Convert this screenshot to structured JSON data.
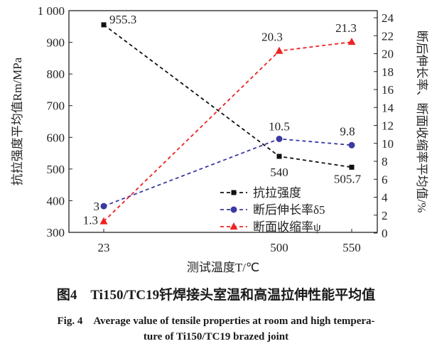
{
  "chart_data": {
    "type": "line",
    "categories": [
      "23",
      "500",
      "550"
    ],
    "xlabel": "测试温度T/℃",
    "ylabel_left": "抗拉强度平均值Rm/MPa",
    "ylabel_right": "断后伸长率、断面收缩率平均值/%",
    "ylim_left": [
      300,
      1000
    ],
    "ylim_right": [
      0,
      24
    ],
    "yticks_left": [
      "300",
      "400",
      "500",
      "600",
      "700",
      "800",
      "900",
      "1 000"
    ],
    "yticks_right": [
      "0",
      "2",
      "4",
      "6",
      "8",
      "10",
      "12",
      "14",
      "16",
      "18",
      "20",
      "22",
      "24"
    ],
    "legend_position": "bottom-right",
    "grid": false,
    "series": [
      {
        "name": "抗拉强度",
        "axis": "left",
        "values": [
          955.3,
          540,
          505.7
        ],
        "labels": [
          "955.3",
          "540",
          "505.7"
        ],
        "color": "#111111",
        "marker": "square"
      },
      {
        "name": "断后伸长率δ5",
        "axis": "right",
        "values": [
          3,
          10.5,
          9.8
        ],
        "labels": [
          "3",
          "10.5",
          "9.8"
        ],
        "color": "#3a3aa0",
        "marker": "circle"
      },
      {
        "name": "断面收缩率ψ",
        "axis": "right",
        "values": [
          1.3,
          20.3,
          21.3
        ],
        "labels": [
          "1.3",
          "20.3",
          "21.3"
        ],
        "color": "#ee2222",
        "marker": "triangle"
      }
    ]
  },
  "caption": {
    "cn": "图4　Ti150/TC19钎焊接头室温和高温拉伸性能平均值",
    "en_line1": "Fig. 4　Average value of tensile properties at room and high tempera-",
    "en_line2": "ture of Ti150/TC19 brazed joint"
  }
}
